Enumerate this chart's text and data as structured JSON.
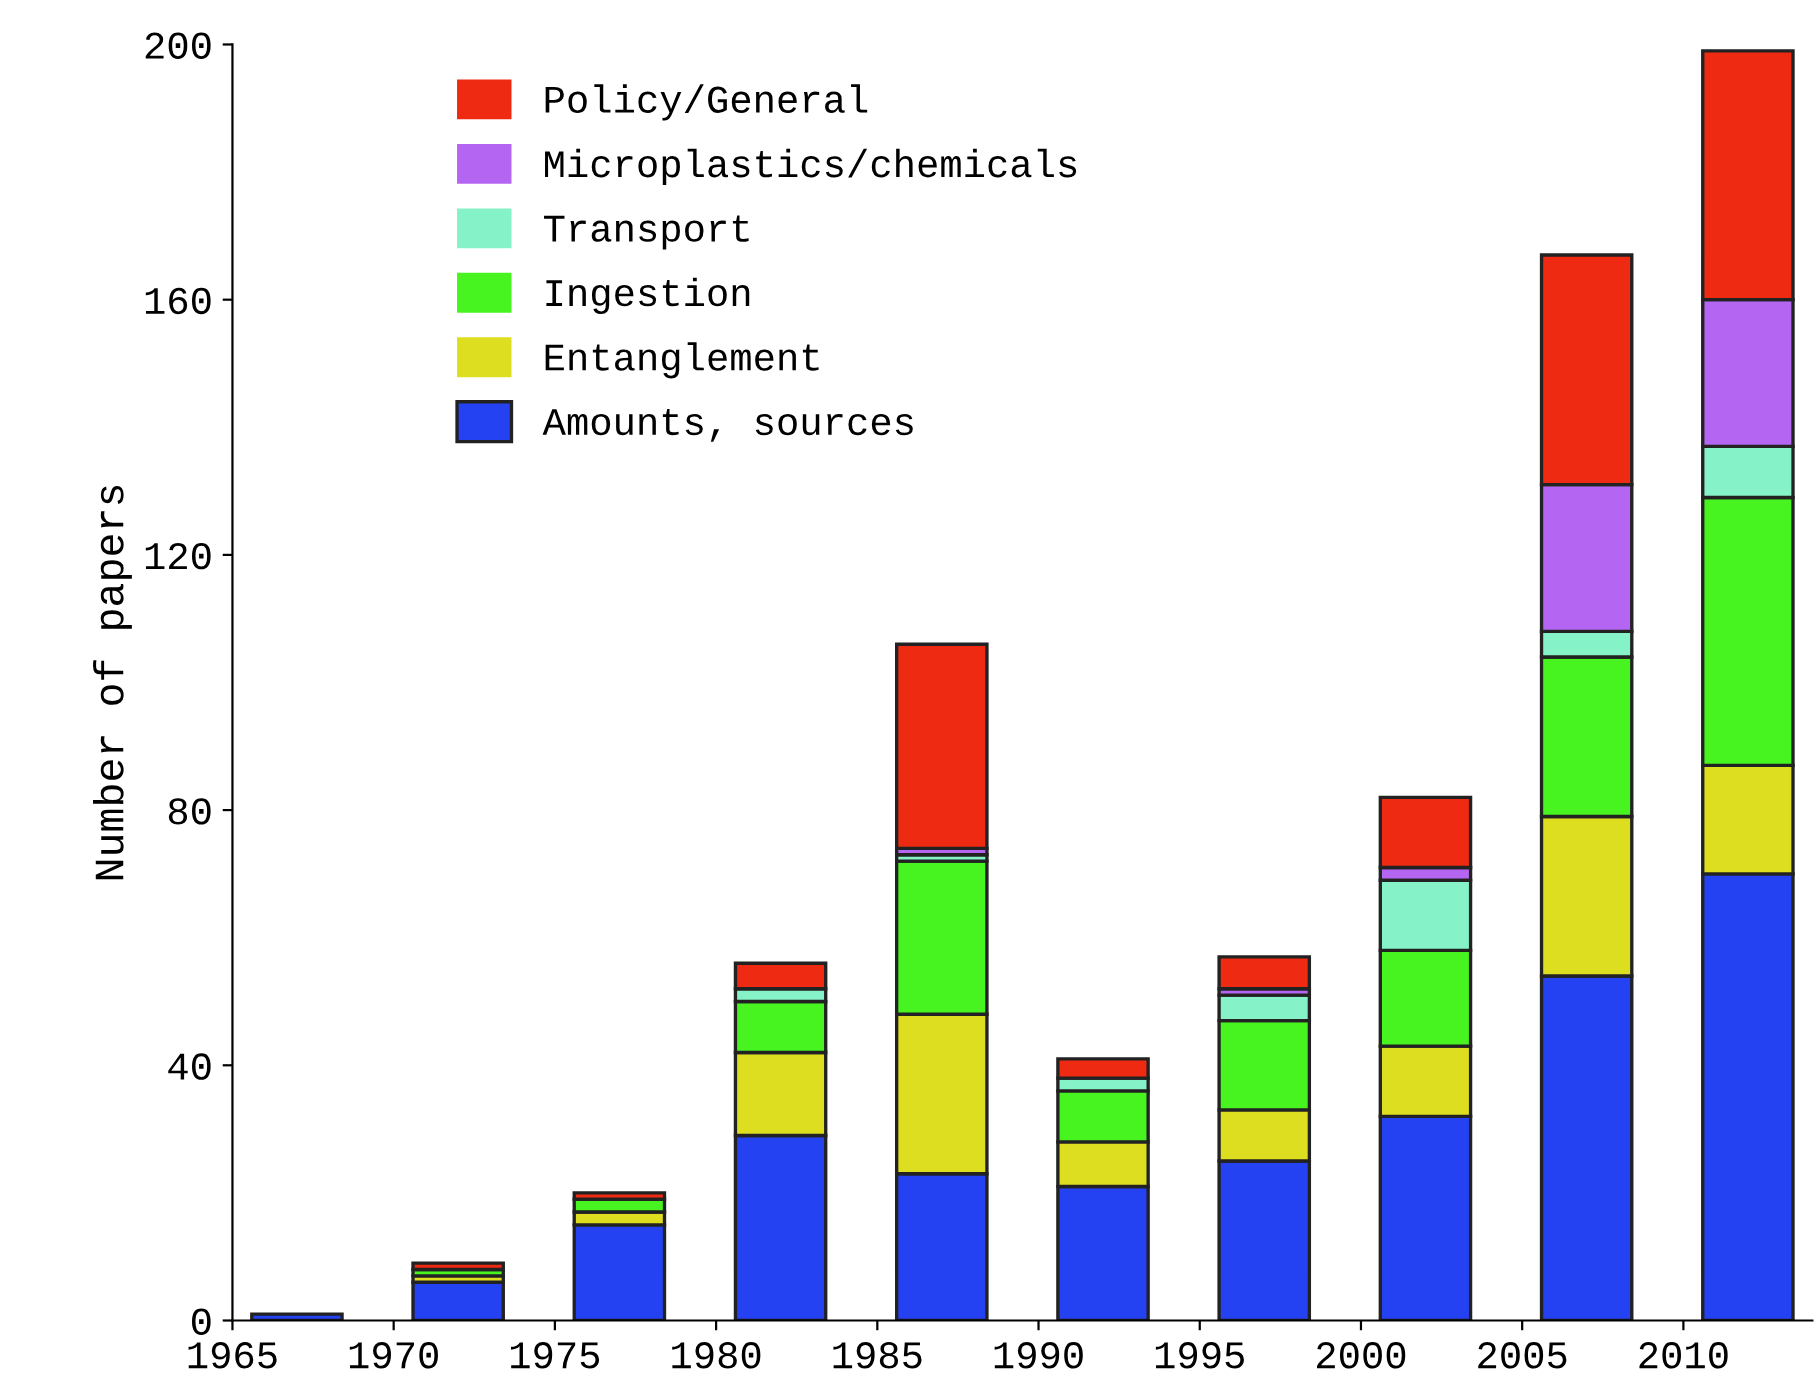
{
  "chart_data": {
    "type": "bar",
    "stacked": true,
    "ylabel": "Number of papers",
    "x": [
      1967,
      1972,
      1977,
      1982,
      1987,
      1992,
      1997,
      2002,
      2007,
      2012
    ],
    "series": [
      {
        "name": "Amounts, sources",
        "color": "#2442f2",
        "values": [
          1,
          6,
          15,
          29,
          23,
          21,
          25,
          32,
          54,
          70
        ]
      },
      {
        "name": "Entanglement",
        "color": "#dede20",
        "values": [
          0,
          1,
          2,
          13,
          25,
          7,
          8,
          11,
          25,
          17
        ]
      },
      {
        "name": "Ingestion",
        "color": "#48f420",
        "values": [
          0,
          1,
          2,
          8,
          24,
          8,
          14,
          15,
          25,
          42
        ]
      },
      {
        "name": "Transport",
        "color": "#86f2c8",
        "values": [
          0,
          0,
          0,
          2,
          1,
          2,
          4,
          11,
          4,
          8
        ]
      },
      {
        "name": "Microplastics/chemicals",
        "color": "#b466f2",
        "values": [
          0,
          0,
          0,
          0,
          1,
          0,
          1,
          2,
          23,
          23
        ]
      },
      {
        "name": "Policy/General",
        "color": "#ee2a12",
        "values": [
          0,
          1,
          1,
          4,
          32,
          3,
          5,
          11,
          36,
          39
        ]
      }
    ],
    "xlim": [
      1965,
      2014
    ],
    "xticks": [
      1965,
      1970,
      1975,
      1980,
      1985,
      1990,
      1995,
      2000,
      2005,
      2010
    ],
    "ylim": [
      0,
      200
    ],
    "yticks": [
      0,
      40,
      80,
      120,
      160,
      200
    ],
    "grid": false,
    "legend": "top left"
  }
}
